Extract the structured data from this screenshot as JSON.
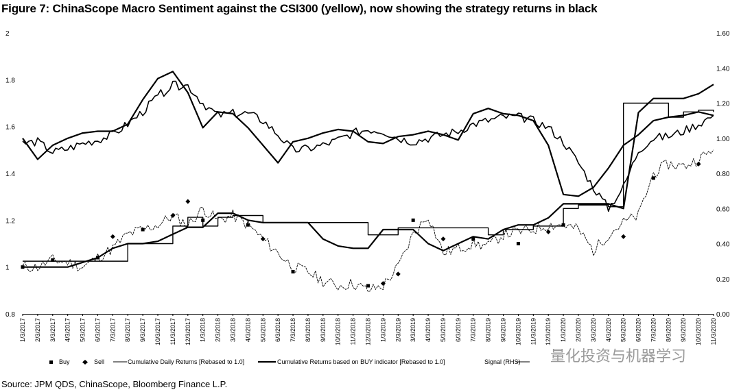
{
  "figure": {
    "title": "Figure 7: ChinaScope Macro Sentiment against the CSI300 (yellow), now showing the strategy returns in black",
    "source": "Source: JPM QDS, ChinaScope, Bloomberg Finance L.P.",
    "watermark": "量化投资与机器学习"
  },
  "chart_data": {
    "type": "line",
    "title": "Figure 7: ChinaScope Macro Sentiment against the CSI300 (yellow), now showing the strategy returns in black",
    "x_ticks": [
      "1/3/2017",
      "2/3/2017",
      "3/3/2017",
      "4/3/2017",
      "5/3/2017",
      "6/3/2017",
      "7/3/2017",
      "8/3/2017",
      "9/3/2017",
      "10/3/2017",
      "11/3/2017",
      "12/3/2017",
      "1/3/2018",
      "2/3/2018",
      "3/3/2018",
      "4/3/2018",
      "5/3/2018",
      "6/3/2018",
      "7/3/2018",
      "8/3/2018",
      "9/3/2018",
      "10/3/2018",
      "11/3/2018",
      "12/3/2018",
      "1/3/2019",
      "2/3/2019",
      "3/3/2019",
      "4/3/2019",
      "5/3/2019",
      "6/3/2019",
      "7/3/2019",
      "8/3/2019",
      "9/3/2019",
      "10/3/2019",
      "11/3/2019",
      "12/3/2019",
      "1/3/2020",
      "2/3/2020",
      "3/3/2020",
      "4/3/2020",
      "5/3/2020",
      "6/3/2020",
      "7/3/2020",
      "8/3/2020",
      "9/3/2020",
      "10/3/2020",
      "11/3/2020"
    ],
    "y_left": {
      "min": 0.8,
      "max": 2.0,
      "ticks": [
        "0.8",
        "1",
        "1.2",
        "1.4",
        "1.6",
        "1.8",
        "2"
      ]
    },
    "y_right": {
      "min": 0.0,
      "max": 1.6,
      "ticks": [
        "0.00",
        "0.20",
        "0.40",
        "0.60",
        "0.80",
        "1.00",
        "1.20",
        "1.40",
        "1.60"
      ],
      "label": "Signal (RHS)"
    },
    "grid": false,
    "legend_position": "bottom",
    "legend": [
      {
        "name": "Buy",
        "marker": "square"
      },
      {
        "name": "Sell",
        "marker": "diamond"
      },
      {
        "name": "Cumulative Daily Returns [Rebased to 1.0]",
        "style": "thin"
      },
      {
        "name": "Cumulative Returns based on BUY indicator [Rebased to 1.0]",
        "style": "thick"
      },
      {
        "name": "Signal (RHS)",
        "style": "thin"
      }
    ],
    "series": [
      {
        "name": "Cumulative Daily Returns [Rebased to 1.0]",
        "axis": "left",
        "style": "thin",
        "points": [
          [
            0,
            1.0
          ],
          [
            1,
            1.0
          ],
          [
            2,
            1.03
          ],
          [
            3,
            1.02
          ],
          [
            4,
            1.0
          ],
          [
            5,
            1.04
          ],
          [
            6,
            1.08
          ],
          [
            7,
            1.14
          ],
          [
            8,
            1.16
          ],
          [
            9,
            1.18
          ],
          [
            10,
            1.22
          ],
          [
            11,
            1.18
          ],
          [
            12,
            1.25
          ],
          [
            13,
            1.2
          ],
          [
            14,
            1.22
          ],
          [
            15,
            1.18
          ],
          [
            16,
            1.12
          ],
          [
            17,
            1.06
          ],
          [
            18,
            1.0
          ],
          [
            19,
            0.98
          ],
          [
            20,
            0.94
          ],
          [
            21,
            0.92
          ],
          [
            22,
            0.93
          ],
          [
            23,
            0.9
          ],
          [
            24,
            0.92
          ],
          [
            25,
            1.0
          ],
          [
            26,
            1.14
          ],
          [
            27,
            1.22
          ],
          [
            28,
            1.06
          ],
          [
            29,
            1.08
          ],
          [
            30,
            1.1
          ],
          [
            31,
            1.09
          ],
          [
            32,
            1.14
          ],
          [
            33,
            1.15
          ],
          [
            34,
            1.16
          ],
          [
            35,
            1.18
          ],
          [
            36,
            1.18
          ],
          [
            37,
            1.16
          ],
          [
            38,
            1.07
          ],
          [
            39,
            1.14
          ],
          [
            40,
            1.19
          ],
          [
            41,
            1.22
          ],
          [
            42,
            1.4
          ],
          [
            43,
            1.44
          ],
          [
            44,
            1.43
          ],
          [
            45,
            1.46
          ],
          [
            46,
            1.5
          ]
        ]
      },
      {
        "name": "Cumulative Returns based on BUY indicator [Rebased to 1.0]",
        "axis": "left",
        "style": "thick",
        "points": [
          [
            0,
            1.0
          ],
          [
            1,
            1.0
          ],
          [
            2,
            1.0
          ],
          [
            3,
            1.0
          ],
          [
            4,
            1.02
          ],
          [
            5,
            1.04
          ],
          [
            6,
            1.08
          ],
          [
            7,
            1.1
          ],
          [
            8,
            1.1
          ],
          [
            9,
            1.11
          ],
          [
            10,
            1.14
          ],
          [
            11,
            1.17
          ],
          [
            12,
            1.17
          ],
          [
            13,
            1.23
          ],
          [
            14,
            1.23
          ],
          [
            15,
            1.2
          ],
          [
            16,
            1.19
          ],
          [
            17,
            1.19
          ],
          [
            18,
            1.19
          ],
          [
            19,
            1.19
          ],
          [
            20,
            1.12
          ],
          [
            21,
            1.09
          ],
          [
            22,
            1.08
          ],
          [
            23,
            1.08
          ],
          [
            24,
            1.16
          ],
          [
            25,
            1.16
          ],
          [
            26,
            1.16
          ],
          [
            27,
            1.1
          ],
          [
            28,
            1.07
          ],
          [
            29,
            1.1
          ],
          [
            30,
            1.13
          ],
          [
            31,
            1.12
          ],
          [
            32,
            1.16
          ],
          [
            33,
            1.18
          ],
          [
            34,
            1.18
          ],
          [
            35,
            1.21
          ],
          [
            36,
            1.27
          ],
          [
            37,
            1.27
          ],
          [
            38,
            1.27
          ],
          [
            39,
            1.27
          ],
          [
            40,
            1.25
          ],
          [
            41,
            1.66
          ],
          [
            42,
            1.72
          ],
          [
            43,
            1.72
          ],
          [
            44,
            1.72
          ],
          [
            45,
            1.74
          ],
          [
            46,
            1.78
          ]
        ]
      },
      {
        "name": "CSI300",
        "axis": "right",
        "style": "thick",
        "points": [
          [
            0,
            1.0
          ],
          [
            1,
            0.88
          ],
          [
            2,
            0.96
          ],
          [
            3,
            1.0
          ],
          [
            4,
            1.03
          ],
          [
            5,
            1.04
          ],
          [
            6,
            1.04
          ],
          [
            7,
            1.08
          ],
          [
            8,
            1.22
          ],
          [
            9,
            1.34
          ],
          [
            10,
            1.38
          ],
          [
            11,
            1.26
          ],
          [
            12,
            1.06
          ],
          [
            13,
            1.15
          ],
          [
            14,
            1.14
          ],
          [
            15,
            1.06
          ],
          [
            16,
            0.96
          ],
          [
            17,
            0.86
          ],
          [
            18,
            0.98
          ],
          [
            19,
            1.0
          ],
          [
            20,
            1.03
          ],
          [
            21,
            1.05
          ],
          [
            22,
            1.04
          ],
          [
            23,
            0.98
          ],
          [
            24,
            0.97
          ],
          [
            25,
            1.01
          ],
          [
            26,
            1.02
          ],
          [
            27,
            1.04
          ],
          [
            28,
            1.02
          ],
          [
            29,
            0.99
          ],
          [
            30,
            1.14
          ],
          [
            31,
            1.17
          ],
          [
            32,
            1.14
          ],
          [
            33,
            1.13
          ],
          [
            34,
            1.1
          ],
          [
            35,
            0.96
          ],
          [
            36,
            0.68
          ],
          [
            37,
            0.67
          ],
          [
            38,
            0.72
          ],
          [
            39,
            0.83
          ],
          [
            40,
            0.96
          ],
          [
            41,
            1.02
          ],
          [
            42,
            1.1
          ],
          [
            43,
            1.12
          ],
          [
            44,
            1.13
          ],
          [
            45,
            1.15
          ],
          [
            46,
            1.13
          ]
        ]
      },
      {
        "name": "Macro Sentiment",
        "axis": "right",
        "style": "medium",
        "points": [
          [
            0,
            0.97
          ],
          [
            1,
            0.98
          ],
          [
            2,
            0.92
          ],
          [
            3,
            0.94
          ],
          [
            4,
            0.97
          ],
          [
            5,
            0.99
          ],
          [
            6,
            1.02
          ],
          [
            7,
            1.08
          ],
          [
            8,
            1.15
          ],
          [
            9,
            1.24
          ],
          [
            10,
            1.3
          ],
          [
            11,
            1.3
          ],
          [
            12,
            1.2
          ],
          [
            13,
            1.13
          ],
          [
            14,
            1.14
          ],
          [
            15,
            1.14
          ],
          [
            16,
            1.1
          ],
          [
            17,
            1.02
          ],
          [
            18,
            0.93
          ],
          [
            19,
            0.94
          ],
          [
            20,
            0.96
          ],
          [
            21,
            0.99
          ],
          [
            22,
            1.03
          ],
          [
            23,
            1.05
          ],
          [
            24,
            1.04
          ],
          [
            25,
            1.0
          ],
          [
            26,
            0.98
          ],
          [
            27,
            1.0
          ],
          [
            28,
            1.02
          ],
          [
            29,
            1.04
          ],
          [
            30,
            1.08
          ],
          [
            31,
            1.1
          ],
          [
            32,
            1.12
          ],
          [
            33,
            1.12
          ],
          [
            34,
            1.1
          ],
          [
            35,
            1.06
          ],
          [
            36,
            0.98
          ],
          [
            37,
            0.86
          ],
          [
            38,
            0.72
          ],
          [
            39,
            0.6
          ],
          [
            40,
            0.72
          ],
          [
            41,
            0.93
          ],
          [
            42,
            1.0
          ],
          [
            43,
            1.01
          ],
          [
            44,
            1.04
          ],
          [
            45,
            1.08
          ],
          [
            46,
            1.13
          ]
        ]
      },
      {
        "name": "Signal (RHS)",
        "axis": "right",
        "style": "step",
        "points": [
          [
            0,
            0.3
          ],
          [
            4,
            0.3
          ],
          [
            7,
            0.4
          ],
          [
            10,
            0.5
          ],
          [
            11,
            0.55
          ],
          [
            12,
            0.5
          ],
          [
            13,
            0.55
          ],
          [
            14,
            0.56
          ],
          [
            16,
            0.52
          ],
          [
            23,
            0.45
          ],
          [
            25,
            0.49
          ],
          [
            31,
            0.45
          ],
          [
            32,
            0.48
          ],
          [
            34,
            0.5
          ],
          [
            36,
            0.6
          ],
          [
            37,
            0.62
          ],
          [
            38,
            0.62
          ],
          [
            39,
            0.61
          ],
          [
            40,
            1.2
          ],
          [
            42,
            1.2
          ],
          [
            43,
            1.12
          ],
          [
            44,
            1.15
          ],
          [
            45,
            1.16
          ],
          [
            46,
            1.15
          ]
        ]
      }
    ],
    "buy_markers": [
      [
        0,
        1.0
      ],
      [
        2,
        1.03
      ],
      [
        5,
        1.04
      ],
      [
        8,
        1.16
      ],
      [
        12,
        1.2
      ],
      [
        15,
        1.18
      ],
      [
        18,
        0.98
      ],
      [
        23,
        0.92
      ],
      [
        26,
        1.2
      ],
      [
        30,
        1.12
      ],
      [
        33,
        1.1
      ],
      [
        36,
        1.18
      ],
      [
        42,
        1.38
      ]
    ],
    "sell_markers": [
      [
        6,
        1.13
      ],
      [
        10,
        1.22
      ],
      [
        11,
        1.28
      ],
      [
        16,
        1.12
      ],
      [
        24,
        0.93
      ],
      [
        25,
        0.97
      ],
      [
        28,
        1.12
      ],
      [
        35,
        1.15
      ],
      [
        40,
        1.13
      ],
      [
        45,
        1.44
      ]
    ]
  }
}
